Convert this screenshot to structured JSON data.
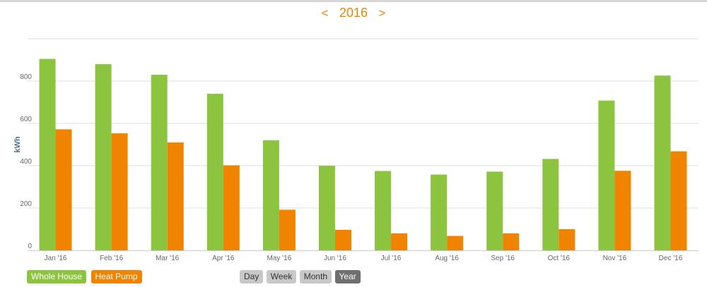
{
  "header": {
    "prev_label": "<",
    "next_label": ">",
    "year_label": "2016"
  },
  "colors": {
    "whole_house": "#8cc43f",
    "heat_pump": "#f08300",
    "accent": "#f08300"
  },
  "chart_data": {
    "type": "bar",
    "ylabel": "kWh",
    "xlabel": "",
    "ylim": [
      0,
      1000
    ],
    "yticks": [
      0,
      200,
      400,
      600,
      800
    ],
    "grid": true,
    "legend_placement": "bottom-left",
    "categories": [
      "Jan '16",
      "Feb '16",
      "Mar '16",
      "Apr '16",
      "May '16",
      "Jun '16",
      "Jul '16",
      "Aug '16",
      "Sep '16",
      "Oct '16",
      "Nov '16",
      "Dec '16"
    ],
    "series": [
      {
        "name": "Whole House",
        "color": "#8cc43f",
        "values": [
          905,
          880,
          830,
          740,
          520,
          400,
          375,
          358,
          372,
          432,
          708,
          826
        ]
      },
      {
        "name": "Heat Pump",
        "color": "#f08300",
        "values": [
          572,
          553,
          510,
          402,
          192,
          97,
          80,
          68,
          80,
          100,
          376,
          468
        ]
      }
    ]
  },
  "legend": {
    "items": [
      {
        "label": "Whole House",
        "color": "#8cc43f"
      },
      {
        "label": "Heat Pump",
        "color": "#f08300"
      }
    ]
  },
  "range_buttons": [
    {
      "label": "Day",
      "active": false
    },
    {
      "label": "Week",
      "active": false
    },
    {
      "label": "Month",
      "active": false
    },
    {
      "label": "Year",
      "active": true
    }
  ]
}
